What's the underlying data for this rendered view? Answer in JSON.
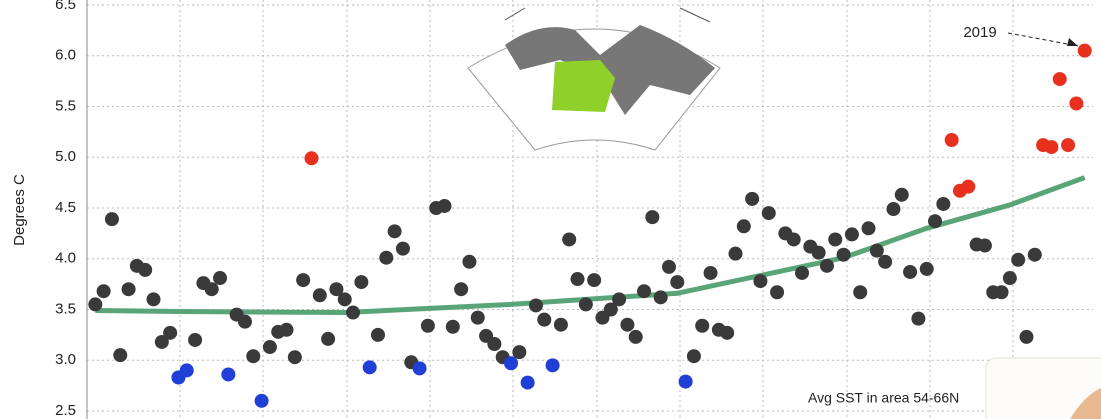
{
  "chart_data": {
    "type": "scatter",
    "y_label": "Degrees C",
    "annotations": [
      "2019",
      "Avg SST in area 54-66N"
    ],
    "xlim": [
      1899,
      2020
    ],
    "ylim": [
      2.5,
      6.5
    ],
    "yticks": [
      2.5,
      {
        "value": 3,
        "label": "3.0"
      },
      3.5,
      {
        "value": 4,
        "label": "4.0"
      },
      4.5,
      {
        "value": 5,
        "label": "5.0"
      },
      5.5,
      {
        "value": 6,
        "label": "6.0"
      },
      6.5
    ],
    "grid": true,
    "series": [
      {
        "color": "#3a3a3a",
        "x": [
          1900,
          1901,
          1902,
          1903,
          1904,
          1905,
          1906,
          1907,
          1908,
          1909,
          1912,
          1913,
          1914,
          1915,
          1917,
          1918,
          1919,
          1921,
          1922,
          1923,
          1924,
          1925,
          1927,
          1928,
          1929,
          1930,
          1931,
          1932,
          1934,
          1935,
          1936,
          1937,
          1938,
          1940,
          1941,
          1942,
          1943,
          1944,
          1945,
          1946,
          1947,
          1948,
          1949,
          1951,
          1953,
          1954,
          1956,
          1957,
          1958,
          1959,
          1960,
          1961,
          1962,
          1963,
          1964,
          1965,
          1966,
          1967,
          1968,
          1969,
          1970,
          1972,
          1973,
          1974,
          1975,
          1976,
          1977,
          1978,
          1979,
          1980,
          1981,
          1982,
          1983,
          1984,
          1985,
          1986,
          1987,
          1988,
          1989,
          1990,
          1991,
          1992,
          1993,
          1994,
          1995,
          1996,
          1997,
          1998,
          1999,
          2000,
          2001,
          2002,
          2006,
          2007,
          2008,
          2009,
          2010,
          2011,
          2012,
          2013
        ],
        "values": [
          3.55,
          3.68,
          4.39,
          3.05,
          3.7,
          3.93,
          3.89,
          3.6,
          3.18,
          3.27,
          3.2,
          3.76,
          3.7,
          3.81,
          3.45,
          3.38,
          3.04,
          3.13,
          3.28,
          3.3,
          3.03,
          3.79,
          3.64,
          3.21,
          3.7,
          3.6,
          3.47,
          3.77,
          3.25,
          4.01,
          4.27,
          4.1,
          2.98,
          3.34,
          4.5,
          4.52,
          3.33,
          3.7,
          3.97,
          3.42,
          3.24,
          3.16,
          3.03,
          3.08,
          3.54,
          3.4,
          3.35,
          4.19,
          3.8,
          3.55,
          3.79,
          3.42,
          3.5,
          3.6,
          3.35,
          3.23,
          3.68,
          4.41,
          3.62,
          3.92,
          3.77,
          3.04,
          3.34,
          3.86,
          3.3,
          3.27,
          4.05,
          4.32,
          4.59,
          3.78,
          4.45,
          3.67,
          4.25,
          4.19,
          3.86,
          4.12,
          4.06,
          3.93,
          4.19,
          4.04,
          4.24,
          3.67,
          4.3,
          4.08,
          3.97,
          4.49,
          4.63,
          3.87,
          3.41,
          3.9,
          4.37,
          4.54,
          4.14,
          4.13,
          3.67,
          3.67,
          3.81,
          3.99,
          3.23,
          4.04
        ]
      },
      {
        "color": "#1f3fd6",
        "x": [
          1910,
          1911,
          1916,
          1920,
          1933,
          1939,
          1950,
          1952,
          1955,
          1971
        ],
        "values": [
          2.83,
          2.9,
          2.86,
          2.6,
          2.93,
          2.92,
          2.97,
          2.78,
          2.95,
          2.79
        ]
      },
      {
        "color": "#e8301f",
        "x": [
          1926,
          2003,
          2004,
          2005,
          2014,
          2015,
          2016,
          2017,
          2018,
          2019
        ],
        "values": [
          4.99,
          5.17,
          4.67,
          4.71,
          5.12,
          5.1,
          5.77,
          5.12,
          5.53,
          6.05
        ]
      }
    ],
    "trend": {
      "color": "#5aa578",
      "x": [
        1900,
        1910,
        1930,
        1950,
        1970,
        1990,
        2000,
        2010,
        2019
      ],
      "values": [
        3.49,
        3.48,
        3.47,
        3.55,
        3.66,
        4.01,
        4.3,
        4.53,
        4.8
      ]
    }
  }
}
